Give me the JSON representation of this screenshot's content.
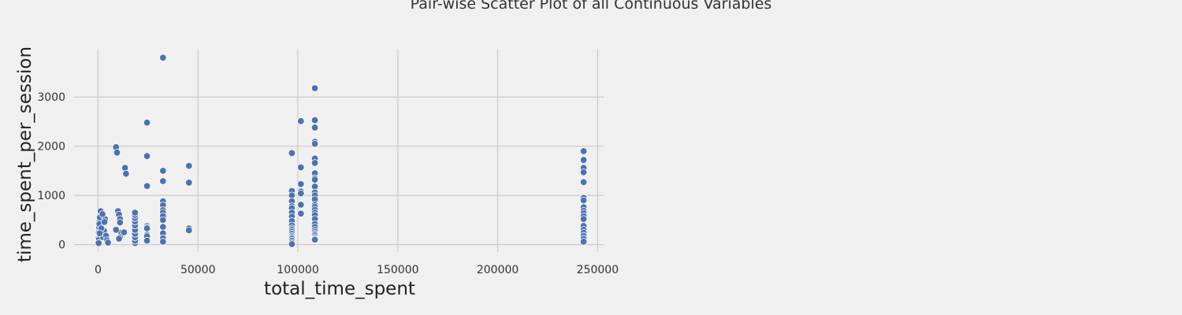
{
  "chart_data": {
    "type": "scatter",
    "title": "Pair-wise Scatter Plot of all Continuous Variables",
    "xlabel": "total_time_spent",
    "ylabel": "time_spent_per_session",
    "xlim": [
      -12000,
      253000
    ],
    "ylim": [
      -150,
      3980
    ],
    "xticks": [
      0,
      50000,
      100000,
      150000,
      200000,
      250000
    ],
    "xtick_labels": [
      "0",
      "50000",
      "100000",
      "150000",
      "200000",
      "250000"
    ],
    "yticks": [
      0,
      1000,
      2000,
      3000
    ],
    "ytick_labels": [
      "0",
      "1000",
      "2000",
      "3000"
    ],
    "grid": true,
    "point_color": "#4c72b0",
    "x": [
      0,
      200,
      400,
      600,
      800,
      1000,
      1200,
      1500,
      1800,
      2000,
      500,
      900,
      1300,
      300,
      700,
      2500,
      3000,
      3500,
      4000,
      4500,
      5000,
      2200,
      1600,
      3200,
      800,
      9000,
      9500,
      10000,
      10500,
      11000,
      11500,
      9000,
      11000,
      10500,
      11000,
      13500,
      14000,
      13000,
      18500,
      18500,
      18500,
      18500,
      18500,
      18500,
      18500,
      18500,
      18500,
      18500,
      24500,
      24500,
      24500,
      24500,
      24500,
      24500,
      24500,
      24500,
      24500,
      32500,
      32500,
      32500,
      32500,
      32500,
      32500,
      32500,
      32500,
      32500,
      32500,
      32500,
      32500,
      32500,
      45500,
      45500,
      45500,
      45500,
      97000,
      97000,
      97000,
      97000,
      97000,
      97000,
      97000,
      97000,
      97000,
      97000,
      97000,
      97000,
      97000,
      97000,
      97000,
      97000,
      97000,
      97000,
      97000,
      97000,
      101500,
      101500,
      101500,
      101500,
      101500,
      101500,
      101500,
      108500,
      108500,
      108500,
      108500,
      108500,
      108500,
      108500,
      108500,
      108500,
      108500,
      108500,
      108500,
      108500,
      108500,
      108500,
      108500,
      108500,
      108500,
      108500,
      108500,
      108500,
      108500,
      108500,
      108500,
      108500,
      108500,
      108500,
      108500,
      108500,
      243000,
      243000,
      243000,
      243000,
      243000,
      243000,
      243000,
      243000,
      243000,
      243000,
      243000,
      243000,
      243000,
      243000,
      243000,
      243000,
      243000,
      243000
    ],
    "y": [
      50,
      120,
      250,
      350,
      480,
      600,
      650,
      400,
      300,
      200,
      100,
      550,
      680,
      30,
      420,
      150,
      280,
      520,
      180,
      90,
      40,
      620,
      330,
      460,
      230,
      1980,
      1870,
      680,
      610,
      520,
      240,
      300,
      150,
      120,
      450,
      1560,
      1440,
      250,
      30,
      80,
      150,
      220,
      300,
      390,
      470,
      540,
      600,
      650,
      2480,
      1800,
      1190,
      380,
      350,
      330,
      200,
      170,
      80,
      3800,
      1500,
      1290,
      880,
      800,
      700,
      650,
      580,
      500,
      360,
      230,
      130,
      60,
      1600,
      1260,
      330,
      290,
      1860,
      1090,
      1000,
      880,
      780,
      740,
      650,
      570,
      480,
      390,
      330,
      300,
      260,
      220,
      180,
      150,
      120,
      80,
      40,
      10,
      2510,
      1570,
      1230,
      1080,
      1040,
      810,
      630,
      3180,
      2530,
      2380,
      2090,
      2050,
      1750,
      1660,
      1450,
      1350,
      1320,
      1180,
      1060,
      1000,
      920,
      810,
      770,
      710,
      650,
      600,
      520,
      420,
      360,
      300,
      260,
      220,
      190,
      150,
      120,
      100,
      1900,
      1720,
      1560,
      1470,
      1270,
      950,
      900,
      760,
      690,
      640,
      580,
      520,
      380,
      300,
      240,
      180,
      120,
      60
    ]
  }
}
